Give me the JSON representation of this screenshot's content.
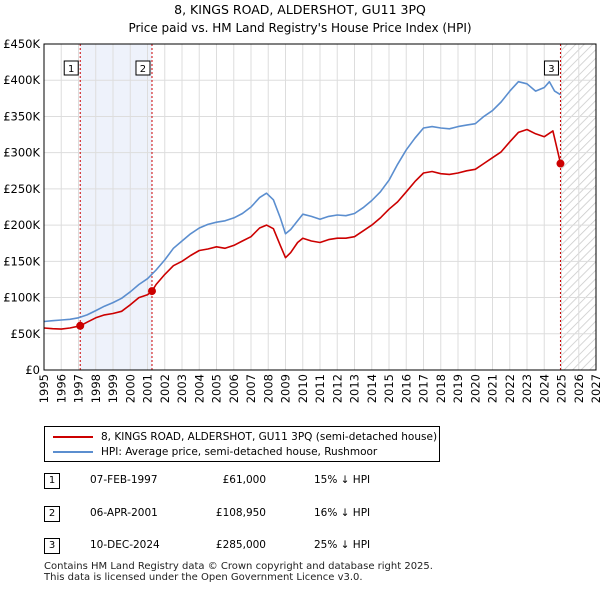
{
  "chart_data": {
    "type": "line",
    "title": "8, KINGS ROAD, ALDERSHOT, GU11 3PQ",
    "subtitle": "Price paid vs. HM Land Registry's House Price Index (HPI)",
    "xlim": [
      1995,
      2027
    ],
    "ylim": [
      0,
      450000
    ],
    "x_ticks": [
      "1995",
      "1996",
      "1997",
      "1998",
      "1999",
      "2000",
      "2001",
      "2002",
      "2003",
      "2004",
      "2005",
      "2006",
      "2007",
      "2008",
      "2009",
      "2010",
      "2011",
      "2012",
      "2013",
      "2014",
      "2015",
      "2016",
      "2017",
      "2018",
      "2019",
      "2020",
      "2021",
      "2022",
      "2023",
      "2024",
      "2025",
      "2026",
      "2027"
    ],
    "y_ticks": [
      {
        "v": 0,
        "label": "£0"
      },
      {
        "v": 50000,
        "label": "£50K"
      },
      {
        "v": 100000,
        "label": "£100K"
      },
      {
        "v": 150000,
        "label": "£150K"
      },
      {
        "v": 200000,
        "label": "£200K"
      },
      {
        "v": 250000,
        "label": "£250K"
      },
      {
        "v": 300000,
        "label": "£300K"
      },
      {
        "v": 350000,
        "label": "£350K"
      },
      {
        "v": 400000,
        "label": "£400K"
      },
      {
        "v": 450000,
        "label": "£450K"
      }
    ],
    "highlight_range": [
      1997.1,
      2001.26
    ],
    "future_from": 2025.0,
    "series": [
      {
        "name": "8, KINGS ROAD, ALDERSHOT, GU11 3PQ (semi-detached house)",
        "color": "#cc0000",
        "x": [
          1995.0,
          1995.5,
          1996.0,
          1996.5,
          1997.1,
          1997.5,
          1998.0,
          1998.5,
          1999.0,
          1999.5,
          2000.0,
          2000.5,
          2001.0,
          2001.26,
          2001.5,
          2002.0,
          2002.5,
          2003.0,
          2003.5,
          2004.0,
          2004.5,
          2005.0,
          2005.5,
          2006.0,
          2006.5,
          2007.0,
          2007.5,
          2007.9,
          2008.3,
          2008.7,
          2009.0,
          2009.3,
          2009.7,
          2010.0,
          2010.5,
          2011.0,
          2011.5,
          2012.0,
          2012.5,
          2013.0,
          2013.5,
          2014.0,
          2014.5,
          2015.0,
          2015.5,
          2016.0,
          2016.5,
          2017.0,
          2017.5,
          2018.0,
          2018.5,
          2019.0,
          2019.5,
          2020.0,
          2020.5,
          2021.0,
          2021.5,
          2022.0,
          2022.5,
          2023.0,
          2023.5,
          2024.0,
          2024.5,
          2024.8,
          2024.94
        ],
        "y": [
          58000,
          57000,
          56500,
          58000,
          61000,
          66000,
          72000,
          76000,
          78000,
          81000,
          90000,
          100000,
          104000,
          108950,
          118000,
          132000,
          144000,
          150000,
          158000,
          165000,
          167000,
          170000,
          168000,
          172000,
          178000,
          184000,
          196000,
          200000,
          195000,
          172000,
          155000,
          162000,
          176000,
          182000,
          178000,
          176000,
          180000,
          182000,
          182000,
          184000,
          192000,
          200000,
          210000,
          222000,
          232000,
          246000,
          260000,
          272000,
          274000,
          271000,
          270000,
          272000,
          275000,
          277000,
          285000,
          293000,
          301000,
          315000,
          328000,
          332000,
          326000,
          322000,
          330000,
          300000,
          285000
        ]
      },
      {
        "name": "HPI: Average price, semi-detached house, Rushmoor",
        "color": "#5b8ecf",
        "x": [
          1995.0,
          1995.5,
          1996.0,
          1996.5,
          1997.0,
          1997.5,
          1998.0,
          1998.5,
          1999.0,
          1999.5,
          2000.0,
          2000.5,
          2001.0,
          2001.5,
          2002.0,
          2002.5,
          2003.0,
          2003.5,
          2004.0,
          2004.5,
          2005.0,
          2005.5,
          2006.0,
          2006.5,
          2007.0,
          2007.5,
          2007.9,
          2008.3,
          2008.7,
          2009.0,
          2009.3,
          2009.7,
          2010.0,
          2010.5,
          2011.0,
          2011.5,
          2012.0,
          2012.5,
          2013.0,
          2013.5,
          2014.0,
          2014.5,
          2015.0,
          2015.5,
          2016.0,
          2016.5,
          2017.0,
          2017.5,
          2018.0,
          2018.5,
          2019.0,
          2019.5,
          2020.0,
          2020.5,
          2021.0,
          2021.5,
          2022.0,
          2022.5,
          2023.0,
          2023.5,
          2024.0,
          2024.3,
          2024.6,
          2024.94
        ],
        "y": [
          67000,
          68000,
          69000,
          70000,
          72000,
          76000,
          82000,
          88000,
          93000,
          99000,
          108000,
          118000,
          126000,
          138000,
          152000,
          168000,
          178000,
          188000,
          196000,
          201000,
          204000,
          206000,
          210000,
          216000,
          225000,
          238000,
          244000,
          235000,
          210000,
          188000,
          194000,
          206000,
          215000,
          212000,
          208000,
          212000,
          214000,
          213000,
          216000,
          224000,
          234000,
          246000,
          262000,
          284000,
          304000,
          320000,
          334000,
          336000,
          334000,
          333000,
          336000,
          338000,
          340000,
          350000,
          358000,
          370000,
          385000,
          398000,
          395000,
          385000,
          390000,
          398000,
          385000,
          380000
        ]
      }
    ],
    "sales": [
      {
        "label": "1",
        "x": 1997.1,
        "y": 61000
      },
      {
        "label": "2",
        "x": 2001.26,
        "y": 108950
      },
      {
        "label": "3",
        "x": 2024.94,
        "y": 285000
      }
    ]
  },
  "legend": {
    "property": "8, KINGS ROAD, ALDERSHOT, GU11 3PQ (semi-detached house)",
    "hpi": "HPI: Average price, semi-detached house, Rushmoor"
  },
  "sales_table": [
    {
      "num": "1",
      "date": "07-FEB-1997",
      "price": "£61,000",
      "hpi": "15% ↓ HPI"
    },
    {
      "num": "2",
      "date": "06-APR-2001",
      "price": "£108,950",
      "hpi": "16% ↓ HPI"
    },
    {
      "num": "3",
      "date": "10-DEC-2024",
      "price": "£285,000",
      "hpi": "25% ↓ HPI"
    }
  ],
  "footer": {
    "line1": "Contains HM Land Registry data © Crown copyright and database right 2025.",
    "line2": "This data is licensed under the Open Government Licence v3.0."
  },
  "colors": {
    "property": "#cc0000",
    "hpi": "#5b8ecf",
    "grid": "#dddddd",
    "highlight": "#eef2fb"
  }
}
